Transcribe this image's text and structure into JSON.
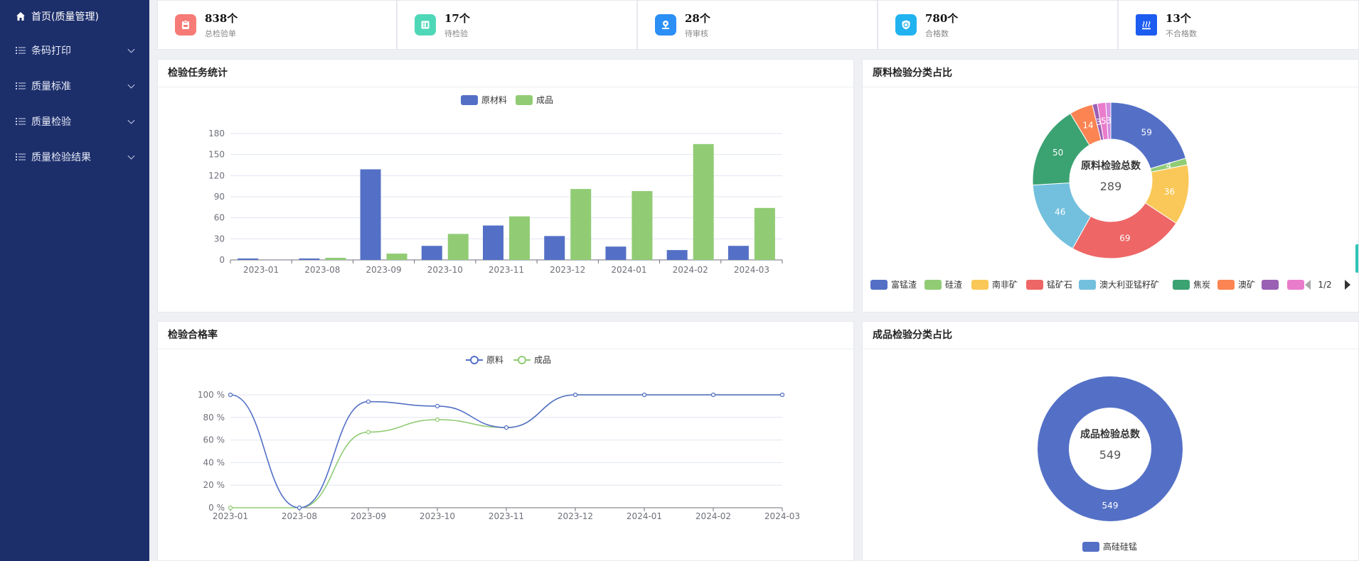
{
  "sidebar": {
    "items": [
      {
        "label": "首页(质量管理)",
        "icon": "home-icon"
      },
      {
        "label": "条码打印",
        "icon": "list-icon"
      },
      {
        "label": "质量标准",
        "icon": "list-icon"
      },
      {
        "label": "质量检验",
        "icon": "list-icon"
      },
      {
        "label": "质量检验结果",
        "icon": "list-icon"
      }
    ]
  },
  "stats": [
    {
      "value": "838个",
      "label": "总检验单",
      "color": "#f67b76",
      "icon": "clipboard-icon"
    },
    {
      "value": "17个",
      "label": "待检验",
      "color": "#4fd8b8",
      "icon": "document-icon"
    },
    {
      "value": "28个",
      "label": "待审核",
      "color": "#2c8ff5",
      "icon": "stamp-icon"
    },
    {
      "value": "780个",
      "label": "合格数",
      "color": "#21b2f0",
      "icon": "shield-icon"
    },
    {
      "value": "13个",
      "label": "不合格数",
      "color": "#1d5cf0",
      "icon": "heater-icon"
    }
  ],
  "panels": {
    "task_stats": {
      "title": "检验任务统计"
    },
    "raw_pie": {
      "title": "原料检验分类占比"
    },
    "pass_rate": {
      "title": "检验合格率"
    },
    "product_pie": {
      "title": "成品检验分类占比"
    }
  },
  "chart_data": [
    {
      "type": "bar",
      "categories": [
        "2023-01",
        "2023-08",
        "2023-09",
        "2023-10",
        "2023-11",
        "2023-12",
        "2024-01",
        "2024-02",
        "2024-03"
      ],
      "series": [
        {
          "name": "原材料",
          "color": "#5470c6",
          "values": [
            2,
            2,
            129,
            20,
            49,
            34,
            19,
            14,
            20
          ]
        },
        {
          "name": "成品",
          "color": "#91cc75",
          "values": [
            0,
            3,
            9,
            37,
            62,
            101,
            98,
            165,
            74
          ]
        }
      ],
      "ylim": [
        0,
        180
      ],
      "yticks": [
        0,
        30,
        60,
        90,
        120,
        150,
        180
      ],
      "legend": "top-center",
      "grid": true
    },
    {
      "type": "pie",
      "center_title": "原料检验总数",
      "center_value": "289",
      "slices": [
        {
          "name": "富锰渣",
          "value": 59,
          "color": "#5470c6"
        },
        {
          "name": "硅渣",
          "value": 4,
          "color": "#91cc75"
        },
        {
          "name": "南非矿",
          "value": 36,
          "color": "#fac858"
        },
        {
          "name": "锰矿石",
          "value": 69,
          "color": "#ee6666"
        },
        {
          "name": "澳大利亚锰籽矿",
          "value": 46,
          "color": "#73c0de"
        },
        {
          "name": "焦炭",
          "value": 50,
          "color": "#3ba272"
        },
        {
          "name": "澳矿",
          "value": 14,
          "color": "#fc8452"
        },
        {
          "name": "",
          "value": 3,
          "color": "#9a60b4"
        },
        {
          "name": "",
          "value": 5,
          "color": "#ea7ccc"
        },
        {
          "name": "",
          "value": 3,
          "color": "#d48de0"
        }
      ],
      "legend": "bottom",
      "legend_page": "1/2"
    },
    {
      "type": "line",
      "x": [
        "2023-01",
        "2023-08",
        "2023-09",
        "2023-10",
        "2023-11",
        "2023-12",
        "2024-01",
        "2024-02",
        "2024-03"
      ],
      "series": [
        {
          "name": "原料",
          "color": "#5470c6",
          "values": [
            100,
            0,
            94,
            90,
            71,
            100,
            100,
            100,
            100
          ]
        },
        {
          "name": "成品",
          "color": "#91cc75",
          "values": [
            0,
            0,
            67,
            78,
            71,
            100,
            100,
            100,
            100
          ]
        }
      ],
      "ylim": [
        0,
        100
      ],
      "yticks": [
        "0 %",
        "20 %",
        "40 %",
        "60 %",
        "80 %",
        "100 %"
      ],
      "smooth": true,
      "legend": "top-center",
      "grid": true
    },
    {
      "type": "pie",
      "center_title": "成品检验总数",
      "center_value": "549",
      "slices": [
        {
          "name": "高硅硅锰",
          "value": 549,
          "color": "#5470c6"
        }
      ],
      "legend": "bottom"
    }
  ]
}
